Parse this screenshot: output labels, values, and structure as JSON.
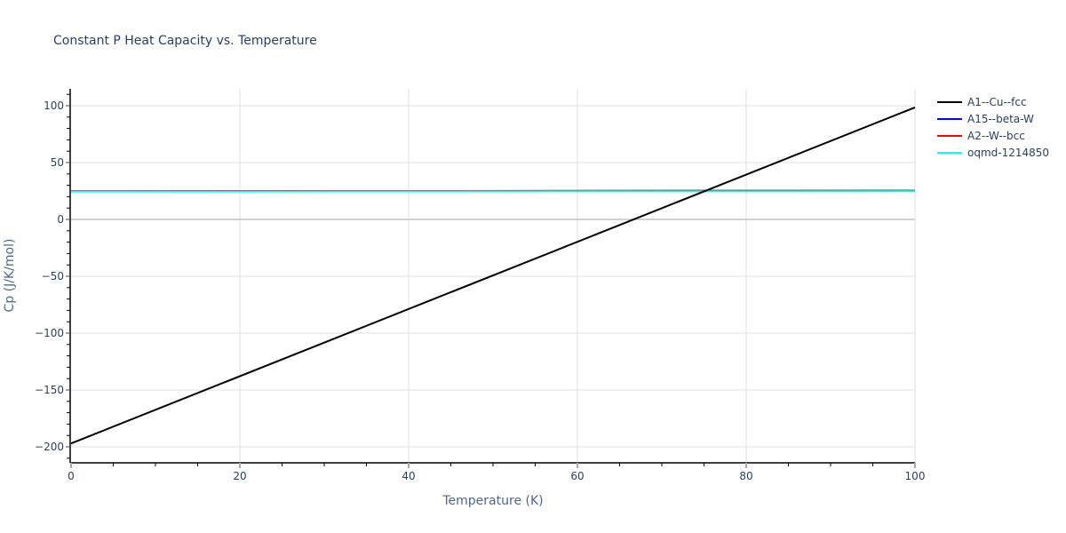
{
  "chart_data": {
    "type": "line",
    "title": "Constant P Heat Capacity vs. Temperature",
    "xlabel": "Temperature (K)",
    "ylabel": "Cp (J/K/mol)",
    "xlim": [
      0,
      100
    ],
    "ylim": [
      -212,
      115
    ],
    "x_ticks": [
      0,
      20,
      40,
      60,
      80,
      100
    ],
    "y_ticks": [
      -200,
      -150,
      -100,
      -50,
      0,
      50,
      100
    ],
    "x_tick_labels": [
      "0",
      "20",
      "40",
      "60",
      "80",
      "100"
    ],
    "y_tick_labels": [
      "−200",
      "−150",
      "−100",
      "−50",
      "0",
      "50",
      "100"
    ],
    "grid": true,
    "legend_position": "right",
    "series": [
      {
        "name": "A1--Cu--fcc",
        "color": "#000000",
        "x": [
          0,
          100
        ],
        "y": [
          -197,
          98.5
        ]
      },
      {
        "name": "A15--beta-W",
        "color": "#0000ff",
        "x": [
          0,
          100
        ],
        "y": [
          24.8,
          25.3
        ]
      },
      {
        "name": "A2--W--bcc",
        "color": "#ff0000",
        "x": [
          0,
          100
        ],
        "y": [
          24.8,
          25.3
        ]
      },
      {
        "name": "oqmd-1214850",
        "color": "#00ffff",
        "x": [
          0,
          100
        ],
        "y": [
          24.5,
          24.8
        ]
      }
    ]
  }
}
